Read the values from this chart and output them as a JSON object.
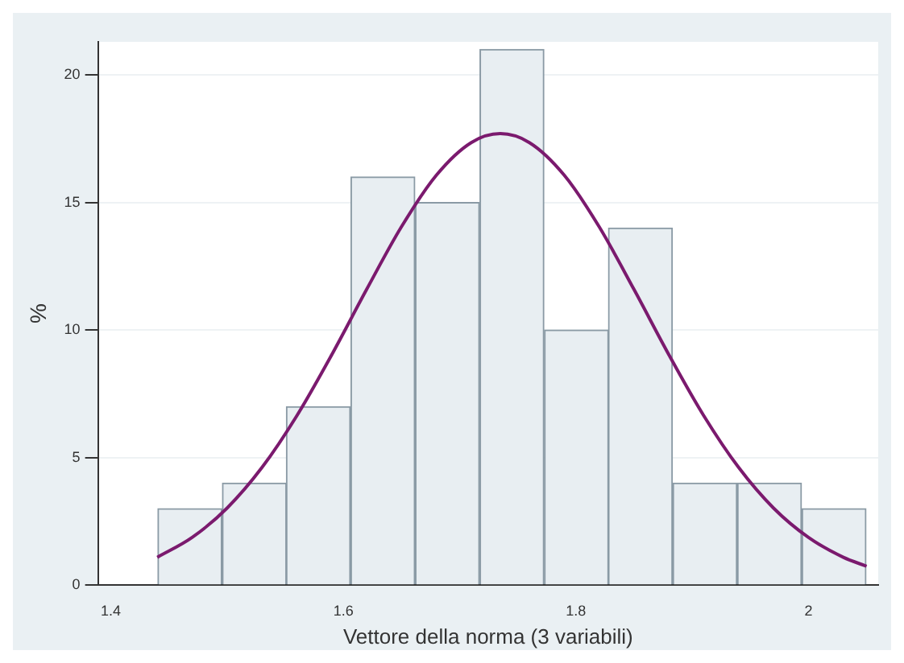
{
  "chart_data": {
    "type": "histogram",
    "xlabel": "Vettore della norma (3 variabili)",
    "ylabel": "%",
    "bins": [
      1.44,
      1.496,
      1.551,
      1.606,
      1.662,
      1.717,
      1.773,
      1.828,
      1.883,
      1.939,
      1.994,
      2.05
    ],
    "series": [
      {
        "color": "#e8eef2",
        "values": [
          3,
          4,
          7,
          16,
          15,
          21,
          10,
          14,
          4,
          4,
          3
        ]
      },
      {
        "type": "line",
        "color": "#7b1a6e",
        "x": [
          1.44,
          1.47,
          1.5,
          1.53,
          1.56,
          1.59,
          1.62,
          1.65,
          1.68,
          1.71,
          1.735,
          1.76,
          1.79,
          1.82,
          1.85,
          1.88,
          1.91,
          1.94,
          1.97,
          2.0,
          2.03,
          2.05
        ],
        "values": [
          1.09,
          1.87,
          3.02,
          4.61,
          6.64,
          9.03,
          11.59,
          14.05,
          16.07,
          17.35,
          17.7,
          17.35,
          16.07,
          14.05,
          11.59,
          9.03,
          6.64,
          4.61,
          3.02,
          1.87,
          1.09,
          0.74
        ]
      }
    ],
    "xlim": [
      1.389,
      2.06
    ],
    "xticks": [
      1.4,
      1.6,
      1.8,
      2
    ],
    "ylim": [
      0,
      21.3
    ],
    "yticks": [
      0,
      5,
      10,
      15,
      20
    ],
    "grid": "y",
    "legend": false,
    "marker": "none",
    "line_style": "solid"
  }
}
